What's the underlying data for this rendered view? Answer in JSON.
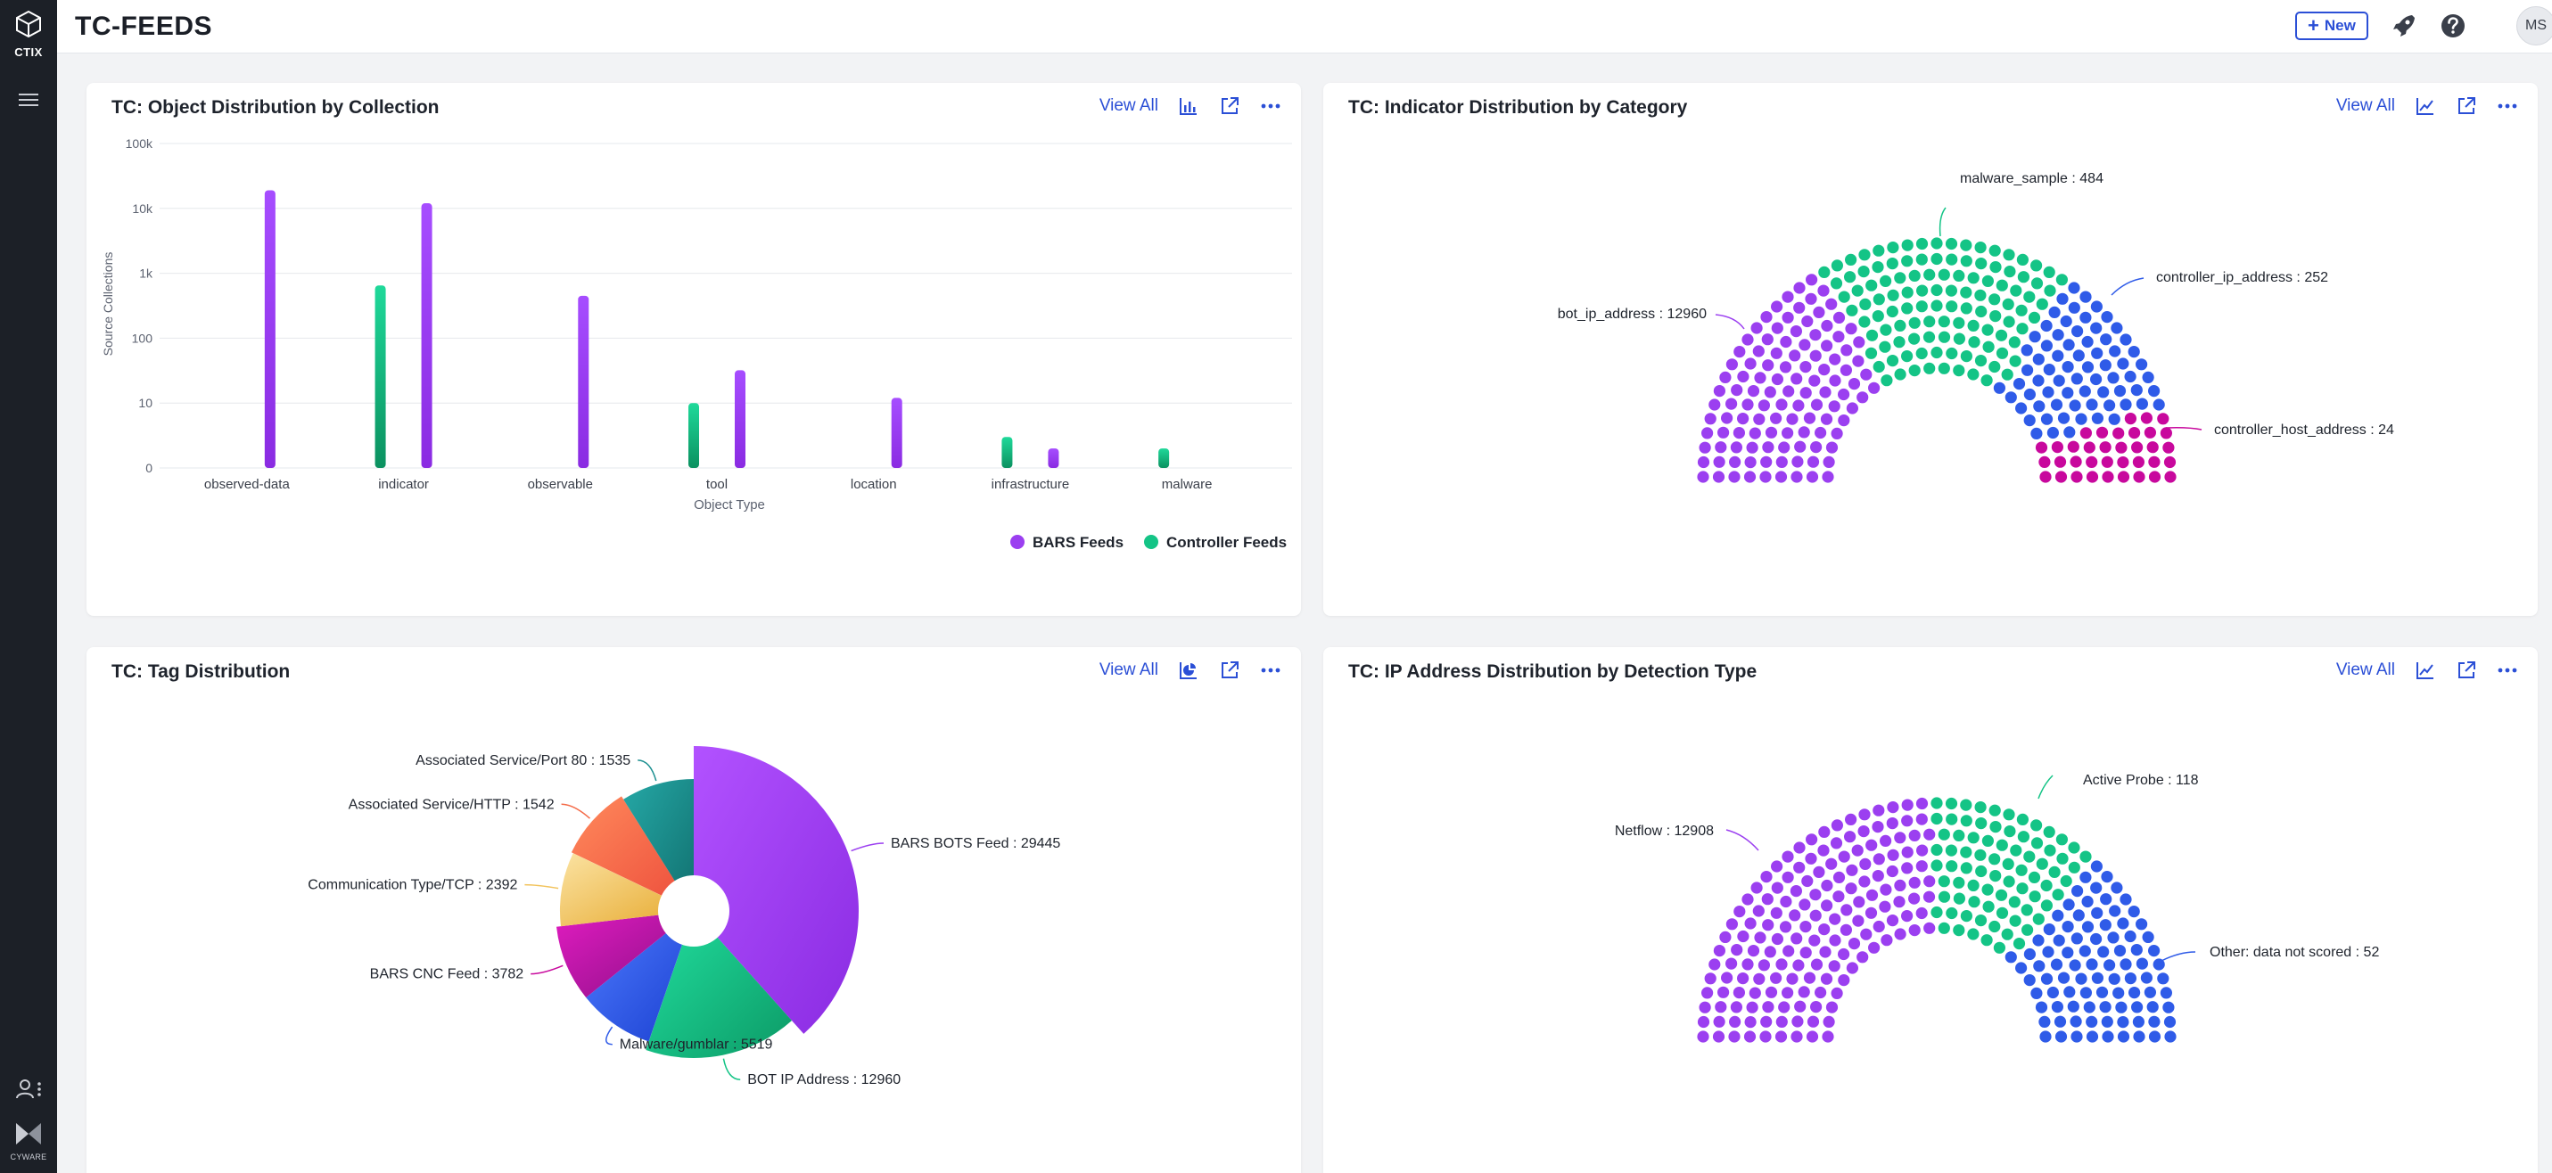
{
  "app": {
    "logo_text": "CTIX",
    "brand_text": "CYWARE"
  },
  "header": {
    "title": "TC-FEEDS",
    "new_label": "New",
    "avatar_initials": "MS"
  },
  "colors": {
    "purple": "#9b3ff0",
    "green": "#14c486",
    "blue": "#2f5be8",
    "magenta": "#c8089d",
    "teal": "#1b8f90",
    "orange": "#f46a47",
    "yellow": "#f2c35c",
    "accent": "#2b4fd6"
  },
  "cards": {
    "c1": {
      "title": "TC: Object Distribution by Collection",
      "view_all": "View All"
    },
    "c2": {
      "title": "TC: Indicator Distribution by Category",
      "view_all": "View All"
    },
    "c3": {
      "title": "TC: Tag Distribution",
      "view_all": "View All"
    },
    "c4": {
      "title": "TC: IP Address Distribution by Detection Type",
      "view_all": "View All"
    }
  },
  "chart_data": [
    {
      "type": "bar",
      "xlabel": "Object Type",
      "ylabel": "Source Collections",
      "yscale": "log",
      "yticks": [
        "0",
        "10",
        "100",
        "1k",
        "10k",
        "100k"
      ],
      "categories": [
        "observed-data",
        "indicator",
        "observable",
        "tool",
        "location",
        "infrastructure",
        "malware"
      ],
      "series": [
        {
          "name": "BARS Feeds",
          "values": [
            19000,
            12000,
            450,
            32,
            12,
            2,
            null
          ]
        },
        {
          "name": "Controller Feeds",
          "values": [
            null,
            650,
            null,
            10,
            null,
            3,
            2
          ]
        }
      ],
      "grid": true,
      "legend": "bottom-right"
    },
    {
      "type": "parliament",
      "labels": [
        "bot_ip_address : 12960",
        "malware_sample : 484",
        "controller_ip_address : 252",
        "controller_host_address : 24"
      ],
      "values": [
        12960,
        484,
        252,
        24
      ]
    },
    {
      "type": "pie",
      "labels": [
        "BARS BOTS Feed : 29445",
        "BOT IP Address : 12960",
        "Malware/gumblar : 5519",
        "BARS CNC Feed : 3782",
        "Communication Type/TCP : 2392",
        "Associated Service/HTTP : 1542",
        "Associated Service/Port 80 : 1535"
      ],
      "values": [
        29445,
        12960,
        5519,
        3782,
        2392,
        1542,
        1535
      ]
    },
    {
      "type": "parliament",
      "labels": [
        "Netflow : 12908",
        "Active Probe : 118",
        "Other: data not scored : 52"
      ],
      "values": [
        12908,
        118,
        52
      ]
    }
  ]
}
